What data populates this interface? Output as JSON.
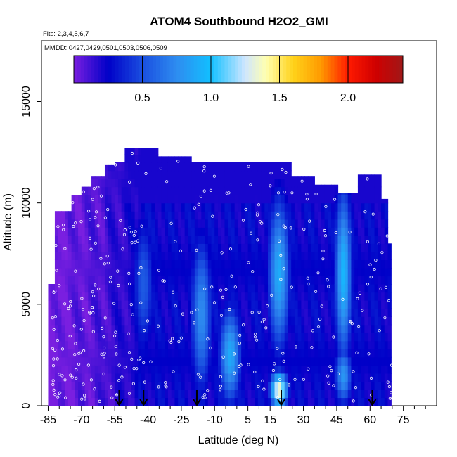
{
  "chart_data": {
    "type": "heatmap",
    "title": "ATOM4 Southbound H2O2_GMI",
    "subtitle_flights": "Flts: 2,3,4,5,6,7",
    "subtitle_dates": "MMDD: 0427,0429,0501,0503,0506,0509",
    "xlabel": "Latitude (deg N)",
    "ylabel": "Altitude (m)",
    "xlim": [
      -88,
      90
    ],
    "ylim": [
      0,
      18000
    ],
    "x_ticks": [
      -85,
      -70,
      -55,
      -40,
      -25,
      -10,
      5,
      15,
      30,
      45,
      60,
      75
    ],
    "x_tick_labels": [
      "-85",
      "-70",
      "-55",
      "-40",
      "-25",
      "-10",
      "5",
      "15",
      "30",
      "45",
      "60",
      "75"
    ],
    "y_ticks": [
      0,
      5000,
      10000,
      15000
    ],
    "y_tick_labels": [
      "0",
      "5000",
      "10000",
      "15000"
    ],
    "colorbar": {
      "range": [
        0,
        2.4
      ],
      "ticks": [
        0.5,
        1.0,
        1.5,
        2.0
      ],
      "tick_labels": [
        "0.5",
        "1.0",
        "1.5",
        "2.0"
      ],
      "stops": [
        {
          "v": 0.0,
          "color": "#7a1fe0"
        },
        {
          "v": 0.25,
          "color": "#0000c8"
        },
        {
          "v": 0.5,
          "color": "#1a4fe0"
        },
        {
          "v": 0.75,
          "color": "#2e8cf0"
        },
        {
          "v": 1.0,
          "color": "#12c0ff"
        },
        {
          "v": 1.25,
          "color": "#cfe6ff"
        },
        {
          "v": 1.4,
          "color": "#ffffb0"
        },
        {
          "v": 1.6,
          "color": "#ffd21a"
        },
        {
          "v": 1.8,
          "color": "#ff9a00"
        },
        {
          "v": 2.0,
          "color": "#ff1a00"
        },
        {
          "v": 2.2,
          "color": "#d00000"
        },
        {
          "v": 2.4,
          "color": "#a01818"
        }
      ]
    },
    "coverage": [
      {
        "lat": [
          -85,
          -82
        ],
        "alt_max": 6000
      },
      {
        "lat": [
          -82,
          -75
        ],
        "alt_max": 9600
      },
      {
        "lat": [
          -75,
          -70
        ],
        "alt_max": 10400
      },
      {
        "lat": [
          -70,
          -65
        ],
        "alt_max": 10800
      },
      {
        "lat": [
          -65,
          -60
        ],
        "alt_max": 11300
      },
      {
        "lat": [
          -60,
          -55
        ],
        "alt_max": 11900
      },
      {
        "lat": [
          -55,
          -50
        ],
        "alt_max": 12000
      },
      {
        "lat": [
          -50,
          -35
        ],
        "alt_max": 12700
      },
      {
        "lat": [
          -35,
          -20
        ],
        "alt_max": 12300
      },
      {
        "lat": [
          -20,
          25
        ],
        "alt_max": 12000
      },
      {
        "lat": [
          25,
          35
        ],
        "alt_max": 11300
      },
      {
        "lat": [
          35,
          45
        ],
        "alt_max": 10900
      },
      {
        "lat": [
          45,
          55
        ],
        "alt_max": 10500
      },
      {
        "lat": [
          55,
          65
        ],
        "alt_max": 11400
      },
      {
        "lat": [
          65,
          68
        ],
        "alt_max": 10200
      },
      {
        "lat": [
          68,
          70
        ],
        "alt_max": 8000
      }
    ],
    "plumes": [
      {
        "lat": -42,
        "width": 5,
        "alt": 6000,
        "spread": 3500,
        "value": 0.55
      },
      {
        "lat": -16,
        "width": 5,
        "alt": 4500,
        "spread": 4000,
        "value": 0.75
      },
      {
        "lat": -3,
        "width": 5,
        "alt": 2500,
        "spread": 2500,
        "value": 0.9
      },
      {
        "lat": 19,
        "width": 5,
        "alt": 6500,
        "spread": 4000,
        "value": 0.9
      },
      {
        "lat": 19,
        "width": 4,
        "alt": 800,
        "spread": 900,
        "value": 1.4
      },
      {
        "lat": 48,
        "width": 4,
        "alt": 6500,
        "spread": 4500,
        "value": 0.95
      },
      {
        "lat": 48,
        "width": 4,
        "alt": 1500,
        "spread": 1500,
        "value": 0.8
      }
    ],
    "arrows_lat": [
      -53,
      -42,
      -18,
      20,
      61
    ]
  }
}
